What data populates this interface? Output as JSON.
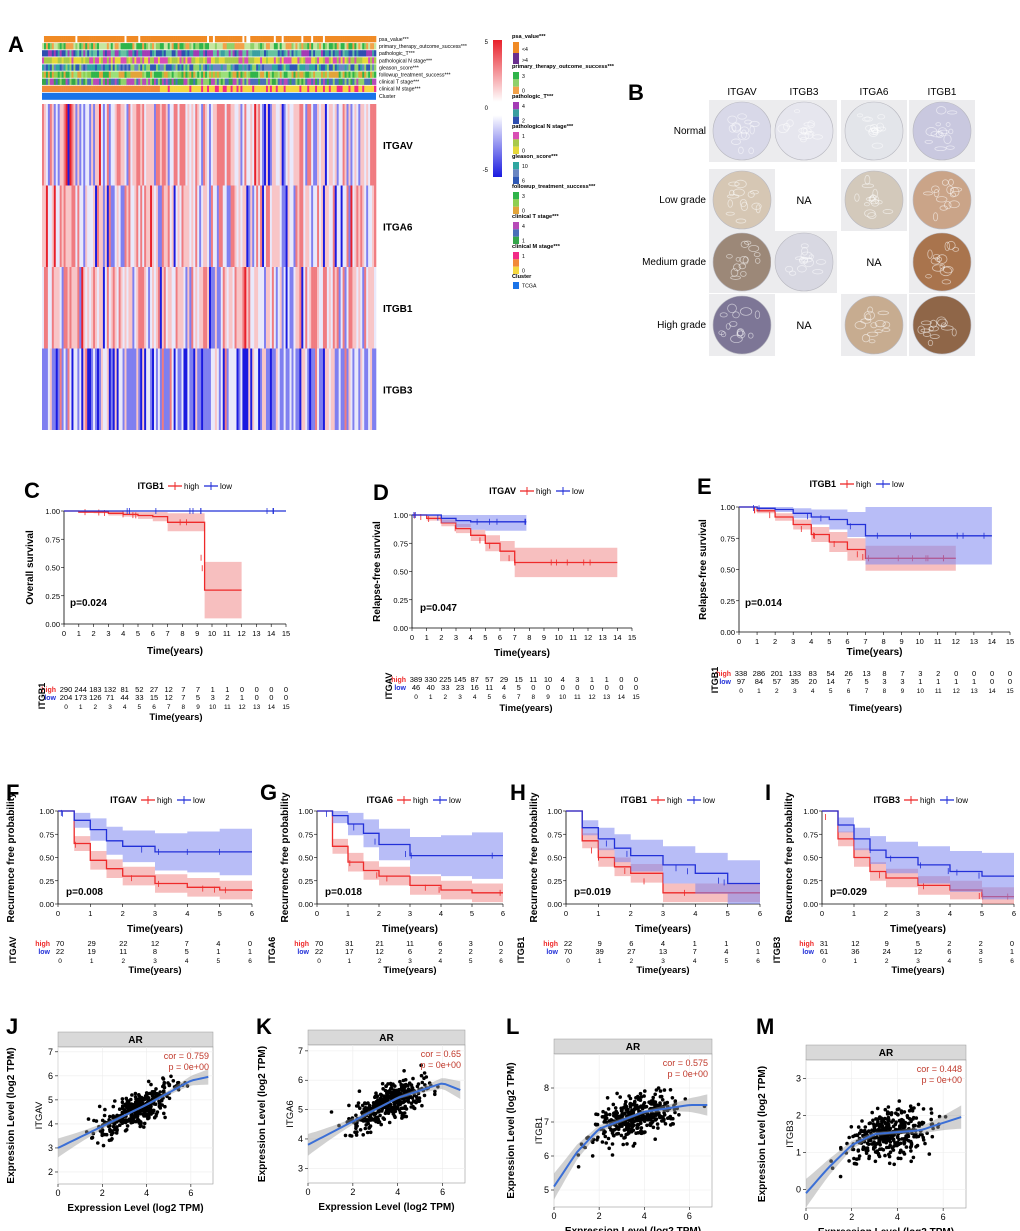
{
  "colors": {
    "high": "#ee2a2a",
    "low": "#2230d8",
    "high_fill": "#f08a8a",
    "low_fill": "#7e86f0",
    "heat_red": "#e8202a",
    "heat_blue": "#1a1ae0",
    "loess": "#3b6fd6",
    "strip_gray": "#d9d9d9"
  },
  "panelA": {
    "letter": "A",
    "annotation_rows": [
      "psa_value***",
      "primary_therapy_outcome_success***",
      "pathologic_T***",
      "pathological N stage***",
      "gleason_score***",
      "followup_treatment_success***",
      "clinical T stage***",
      "clinical M stage***",
      "Cluster"
    ],
    "genes": [
      "ITGAV",
      "ITGA6",
      "ITGB1",
      "ITGB3"
    ],
    "scale_ticks": [
      "5",
      "0",
      "-5"
    ],
    "legend": [
      {
        "title": "psa_value***",
        "levels": [
          "<4",
          ">4"
        ],
        "colors": [
          "#f08a24",
          "#6b2f8f"
        ]
      },
      {
        "title": "primary_therapy_outcome_success***",
        "levels": [
          "3",
          "",
          "0"
        ],
        "colors": [
          "#2fb44a",
          "#8fd16a",
          "#f2a24a"
        ]
      },
      {
        "title": "pathologic_T***",
        "levels": [
          "4",
          "",
          "2"
        ],
        "colors": [
          "#a43bb5",
          "#3a9fa0",
          "#2f4fb0"
        ]
      },
      {
        "title": "pathological N stage***",
        "levels": [
          "1",
          "",
          "0"
        ],
        "colors": [
          "#d94eb4",
          "#a8c94a",
          "#e6d83a"
        ]
      },
      {
        "title": "gleason_score***",
        "levels": [
          "10",
          "",
          "6"
        ],
        "colors": [
          "#2ea6a0",
          "#6a86c2",
          "#2f58b5"
        ]
      },
      {
        "title": "followup_treatment_success***",
        "levels": [
          "3",
          "",
          "0"
        ],
        "colors": [
          "#2fb44a",
          "#8fcf50",
          "#e2a43a"
        ]
      },
      {
        "title": "clinical T stage***",
        "levels": [
          "4",
          "",
          "1"
        ],
        "colors": [
          "#b74ab8",
          "#4a6fb8",
          "#35a64a"
        ]
      },
      {
        "title": "clinical M stage***",
        "levels": [
          "1",
          "",
          "0"
        ],
        "colors": [
          "#f22a86",
          "#f28a3a",
          "#f5d840"
        ]
      },
      {
        "title": "Cluster",
        "levels": [
          "TCGA"
        ],
        "colors": [
          "#1a73e8"
        ]
      }
    ]
  },
  "panelB": {
    "letter": "B",
    "columns": [
      "ITGAV",
      "ITGB3",
      "ITGA6",
      "ITGB1"
    ],
    "rows": [
      "Normal",
      "Low grade",
      "Medium grade",
      "High grade"
    ],
    "na_label": "NA"
  },
  "km1": [
    {
      "letter": "C",
      "gene": "ITGB1",
      "ylabel": "Overall survival",
      "risk_label": "ITGB1",
      "pvalue": "p=0.024",
      "xlabel": "Time(years)",
      "high_label": "high",
      "low_label": "low",
      "yticks": [
        "1.00",
        "0.75",
        "0.50",
        "0.25",
        "0.00"
      ],
      "xticks": [
        "0",
        "1",
        "2",
        "3",
        "4",
        "5",
        "6",
        "7",
        "8",
        "9",
        "10",
        "11",
        "12",
        "13",
        "14",
        "15"
      ],
      "risk_high": [
        "290",
        "244",
        "183",
        "132",
        "81",
        "52",
        "27",
        "12",
        "7",
        "7",
        "1",
        "1",
        "0",
        "0",
        "0",
        "0"
      ],
      "risk_low": [
        "204",
        "173",
        "126",
        "71",
        "44",
        "33",
        "15",
        "12",
        "7",
        "5",
        "3",
        "2",
        "1",
        "0",
        "0",
        "0"
      ]
    },
    {
      "letter": "D",
      "gene": "ITGAV",
      "ylabel": "Relapse-free survival",
      "risk_label": "ITGAV",
      "pvalue": "p=0.047",
      "xlabel": "Time(years)",
      "high_label": "high",
      "low_label": "low",
      "yticks": [
        "1.00",
        "0.75",
        "0.50",
        "0.25",
        "0.00"
      ],
      "xticks": [
        "0",
        "1",
        "2",
        "3",
        "4",
        "5",
        "6",
        "7",
        "8",
        "9",
        "10",
        "11",
        "12",
        "13",
        "14",
        "15"
      ],
      "risk_high": [
        "389",
        "330",
        "225",
        "145",
        "87",
        "57",
        "29",
        "15",
        "11",
        "10",
        "4",
        "3",
        "1",
        "1",
        "0",
        "0"
      ],
      "risk_low": [
        "46",
        "40",
        "33",
        "23",
        "16",
        "11",
        "4",
        "5",
        "0",
        "0",
        "0",
        "0",
        "0",
        "0",
        "0",
        "0"
      ]
    },
    {
      "letter": "E",
      "gene": "ITGB1",
      "ylabel": "Relapse-free survival",
      "risk_label": "ITGB1",
      "pvalue": "p=0.014",
      "xlabel": "Time(years)",
      "high_label": "high",
      "low_label": "low",
      "yticks": [
        "1.00",
        "0.75",
        "0.50",
        "0.25",
        "0.00"
      ],
      "xticks": [
        "0",
        "1",
        "2",
        "3",
        "4",
        "5",
        "6",
        "7",
        "8",
        "9",
        "10",
        "11",
        "12",
        "13",
        "14",
        "15"
      ],
      "risk_high": [
        "338",
        "286",
        "201",
        "133",
        "83",
        "54",
        "26",
        "13",
        "8",
        "7",
        "3",
        "2",
        "0",
        "0",
        "0",
        "0"
      ],
      "risk_low": [
        "97",
        "84",
        "57",
        "35",
        "20",
        "14",
        "7",
        "5",
        "3",
        "3",
        "1",
        "1",
        "1",
        "1",
        "0",
        "0"
      ]
    }
  ],
  "km2": [
    {
      "letter": "F",
      "gene": "ITGAV",
      "pvalue": "p=0.008",
      "risk_label": "ITGAV",
      "ylabel": "Recurrence free probability",
      "xlabel": "Time(years)",
      "high_label": "high",
      "low_label": "low",
      "yticks": [
        "1.00",
        "0.75",
        "0.50",
        "0.25",
        "0.00"
      ],
      "xticks": [
        "0",
        "1",
        "2",
        "3",
        "4",
        "5",
        "6"
      ],
      "risk_high": [
        "70",
        "29",
        "22",
        "12",
        "7",
        "4",
        "0"
      ],
      "risk_low": [
        "22",
        "19",
        "11",
        "8",
        "5",
        "1",
        "1"
      ]
    },
    {
      "letter": "G",
      "gene": "ITGA6",
      "pvalue": "p=0.018",
      "risk_label": "ITGA6",
      "ylabel": "Recurrence free probability",
      "xlabel": "Time(years)",
      "high_label": "high",
      "low_label": "low",
      "yticks": [
        "1.00",
        "0.75",
        "0.50",
        "0.25",
        "0.00"
      ],
      "xticks": [
        "0",
        "1",
        "2",
        "3",
        "4",
        "5",
        "6"
      ],
      "risk_high": [
        "70",
        "31",
        "21",
        "11",
        "6",
        "3",
        "0"
      ],
      "risk_low": [
        "22",
        "17",
        "12",
        "6",
        "2",
        "2",
        "2"
      ]
    },
    {
      "letter": "H",
      "gene": "ITGB1",
      "pvalue": "p=0.019",
      "risk_label": "ITGB1",
      "ylabel": "Recurrence free probability",
      "xlabel": "Time(years)",
      "high_label": "high",
      "low_label": "low",
      "yticks": [
        "1.00",
        "0.75",
        "0.50",
        "0.25",
        "0.00"
      ],
      "xticks": [
        "0",
        "1",
        "2",
        "3",
        "4",
        "5",
        "6"
      ],
      "risk_high": [
        "22",
        "9",
        "6",
        "4",
        "1",
        "1",
        "0"
      ],
      "risk_low": [
        "70",
        "39",
        "27",
        "13",
        "7",
        "4",
        "1"
      ]
    },
    {
      "letter": "I",
      "gene": "ITGB3",
      "pvalue": "p=0.029",
      "risk_label": "ITGB3",
      "ylabel": "Recurrence free probability",
      "xlabel": "Time(years)",
      "high_label": "high",
      "low_label": "low",
      "yticks": [
        "1.00",
        "0.75",
        "0.50",
        "0.25",
        "0.00"
      ],
      "xticks": [
        "0",
        "1",
        "2",
        "3",
        "4",
        "5",
        "6"
      ],
      "risk_high": [
        "31",
        "12",
        "9",
        "5",
        "2",
        "2",
        "0"
      ],
      "risk_low": [
        "61",
        "36",
        "24",
        "12",
        "6",
        "3",
        "1"
      ]
    }
  ],
  "scatter": [
    {
      "letter": "J",
      "strip": "AR",
      "gene": "ITGAV",
      "cor": "cor = 0.759",
      "p": "p = 0e+00",
      "xlabel": "Expression Level (log2 TPM)",
      "ylabel": "Expression Level (log2 TPM)",
      "xticks": [
        "0",
        "2",
        "4",
        "6"
      ],
      "yticks": [
        "2",
        "3",
        "4",
        "5",
        "6",
        "7"
      ]
    },
    {
      "letter": "K",
      "strip": "AR",
      "gene": "ITGA6",
      "cor": "cor = 0.65",
      "p": "p = 0e+00",
      "xlabel": "Expression Level (log2 TPM)",
      "ylabel": "Expression Level (log2 TPM)",
      "xticks": [
        "0",
        "2",
        "4",
        "6"
      ],
      "yticks": [
        "3",
        "4",
        "5",
        "6",
        "7"
      ]
    },
    {
      "letter": "L",
      "strip": "AR",
      "gene": "ITGB1",
      "cor": "cor = 0.575",
      "p": "p = 0e+00",
      "xlabel": "Expression Level (log2 TPM)",
      "ylabel": "Expression Level (log2 TPM)",
      "xticks": [
        "0",
        "2",
        "4",
        "6"
      ],
      "yticks": [
        "5",
        "6",
        "7",
        "8"
      ]
    },
    {
      "letter": "M",
      "strip": "AR",
      "gene": "ITGB3",
      "cor": "cor = 0.448",
      "p": "p = 0e+00",
      "xlabel": "Expression Level (log2 TPM)",
      "ylabel": "Expression Level (log2 TPM)",
      "xticks": [
        "0",
        "2",
        "4",
        "6"
      ],
      "yticks": [
        "0",
        "1",
        "2",
        "3"
      ]
    }
  ],
  "chart_data": [
    {
      "type": "heatmap",
      "title": "A",
      "rows": [
        "ITGAV",
        "ITGA6",
        "ITGB1",
        "ITGB3"
      ],
      "color_range": [
        -5,
        5
      ]
    },
    {
      "type": "line",
      "title": "C ITGB1 Overall survival",
      "x": [
        0,
        1,
        2,
        3,
        4,
        5,
        6,
        7,
        8,
        9,
        9.5,
        10,
        11,
        12
      ],
      "series": [
        {
          "name": "high",
          "values": [
            1.0,
            0.99,
            0.99,
            0.98,
            0.97,
            0.96,
            0.95,
            0.9,
            0.9,
            0.9,
            0.3,
            0.3,
            0.3,
            0.3
          ]
        },
        {
          "name": "low",
          "values": [
            1.0,
            1.0,
            1.0,
            1.0,
            1.0,
            1.0,
            1.0,
            1.0,
            1.0,
            1.0,
            1.0,
            1.0,
            1.0,
            1.0
          ]
        }
      ],
      "ylim": [
        0,
        1
      ],
      "xlim": [
        0,
        15
      ]
    },
    {
      "type": "line",
      "title": "D ITGAV Relapse-free survival",
      "x": [
        0,
        1,
        2,
        3,
        4,
        5,
        6,
        7,
        14
      ],
      "series": [
        {
          "name": "high",
          "values": [
            1.0,
            0.97,
            0.93,
            0.88,
            0.82,
            0.75,
            0.68,
            0.58,
            0.58
          ]
        },
        {
          "name": "low",
          "values": [
            1.0,
            1.0,
            0.97,
            0.95,
            0.94,
            0.94,
            0.94,
            0.94,
            null
          ]
        }
      ],
      "ylim": [
        0,
        1
      ],
      "xlim": [
        0,
        15
      ]
    },
    {
      "type": "line",
      "title": "E ITGB1 Relapse-free survival",
      "x": [
        0,
        1,
        2,
        3,
        4,
        5,
        6,
        7,
        12,
        14
      ],
      "series": [
        {
          "name": "high",
          "values": [
            1.0,
            0.97,
            0.92,
            0.86,
            0.78,
            0.72,
            0.66,
            0.59,
            0.59,
            null
          ]
        },
        {
          "name": "low",
          "values": [
            1.0,
            0.99,
            0.98,
            0.95,
            0.92,
            0.9,
            0.86,
            0.77,
            0.77,
            0.77
          ]
        }
      ],
      "ylim": [
        0,
        1
      ],
      "xlim": [
        0,
        15
      ]
    },
    {
      "type": "line",
      "title": "F ITGAV",
      "x": [
        0,
        0.5,
        1,
        1.5,
        2,
        3,
        4,
        5,
        6
      ],
      "series": [
        {
          "name": "high",
          "values": [
            1.0,
            0.65,
            0.47,
            0.38,
            0.3,
            0.22,
            0.18,
            0.15,
            0.14
          ]
        },
        {
          "name": "low",
          "values": [
            1.0,
            0.9,
            0.8,
            0.68,
            0.62,
            0.56,
            0.56,
            0.56,
            0.56
          ]
        }
      ],
      "ylim": [
        0,
        1
      ],
      "xlim": [
        0,
        6
      ]
    },
    {
      "type": "line",
      "title": "G ITGA6",
      "x": [
        0,
        0.5,
        1,
        1.5,
        2,
        3,
        4,
        5,
        6
      ],
      "series": [
        {
          "name": "high",
          "values": [
            1.0,
            0.62,
            0.45,
            0.36,
            0.3,
            0.2,
            0.15,
            0.12,
            0.12
          ]
        },
        {
          "name": "low",
          "values": [
            1.0,
            0.95,
            0.86,
            0.76,
            0.64,
            0.52,
            0.52,
            0.52,
            0.52
          ]
        }
      ],
      "ylim": [
        0,
        1
      ],
      "xlim": [
        0,
        6
      ]
    },
    {
      "type": "line",
      "title": "H ITGB1",
      "x": [
        0,
        0.5,
        1,
        1.5,
        2,
        3,
        4,
        5,
        6
      ],
      "series": [
        {
          "name": "high",
          "values": [
            1.0,
            0.68,
            0.5,
            0.4,
            0.33,
            0.12,
            0.12,
            0.12,
            0.12
          ]
        },
        {
          "name": "low",
          "values": [
            1.0,
            0.82,
            0.7,
            0.6,
            0.52,
            0.42,
            0.33,
            0.22,
            0.22
          ]
        }
      ],
      "ylim": [
        0,
        1
      ],
      "xlim": [
        0,
        6
      ]
    },
    {
      "type": "line",
      "title": "I ITGB3",
      "x": [
        0,
        0.5,
        1,
        1.5,
        2,
        3,
        4,
        5,
        6
      ],
      "series": [
        {
          "name": "high",
          "values": [
            1.0,
            0.7,
            0.5,
            0.35,
            0.28,
            0.2,
            0.15,
            0.08,
            0.08
          ]
        },
        {
          "name": "low",
          "values": [
            1.0,
            0.85,
            0.7,
            0.58,
            0.5,
            0.42,
            0.35,
            0.3,
            0.3
          ]
        }
      ],
      "ylim": [
        0,
        1
      ],
      "xlim": [
        0,
        6
      ]
    },
    {
      "type": "scatter",
      "title": "J AR vs ITGAV",
      "cor": 0.759,
      "xlim": [
        0,
        7
      ],
      "ylim": [
        1.5,
        7.2
      ],
      "trend_x": [
        0,
        2,
        4,
        6,
        7
      ],
      "trend_y": [
        3.0,
        3.9,
        4.8,
        5.8,
        6.0
      ]
    },
    {
      "type": "scatter",
      "title": "K AR vs ITGA6",
      "cor": 0.65,
      "xlim": [
        0,
        7
      ],
      "ylim": [
        2.5,
        7.2
      ],
      "trend_x": [
        0,
        2,
        4,
        6,
        7
      ],
      "trend_y": [
        3.8,
        4.6,
        5.4,
        5.9,
        5.6
      ]
    },
    {
      "type": "scatter",
      "title": "L AR vs ITGB1",
      "cor": 0.575,
      "xlim": [
        0,
        7
      ],
      "ylim": [
        4.5,
        9
      ],
      "trend_x": [
        0,
        1,
        2,
        4,
        6,
        7
      ],
      "trend_y": [
        5.1,
        6.1,
        6.8,
        7.3,
        7.5,
        7.5
      ]
    },
    {
      "type": "scatter",
      "title": "M AR vs ITGB3",
      "cor": 0.448,
      "xlim": [
        0,
        7
      ],
      "ylim": [
        -0.5,
        3.5
      ],
      "trend_x": [
        0,
        1,
        2,
        3,
        5,
        7
      ],
      "trend_y": [
        -0.1,
        0.6,
        1.2,
        1.5,
        1.6,
        2.0
      ]
    }
  ]
}
